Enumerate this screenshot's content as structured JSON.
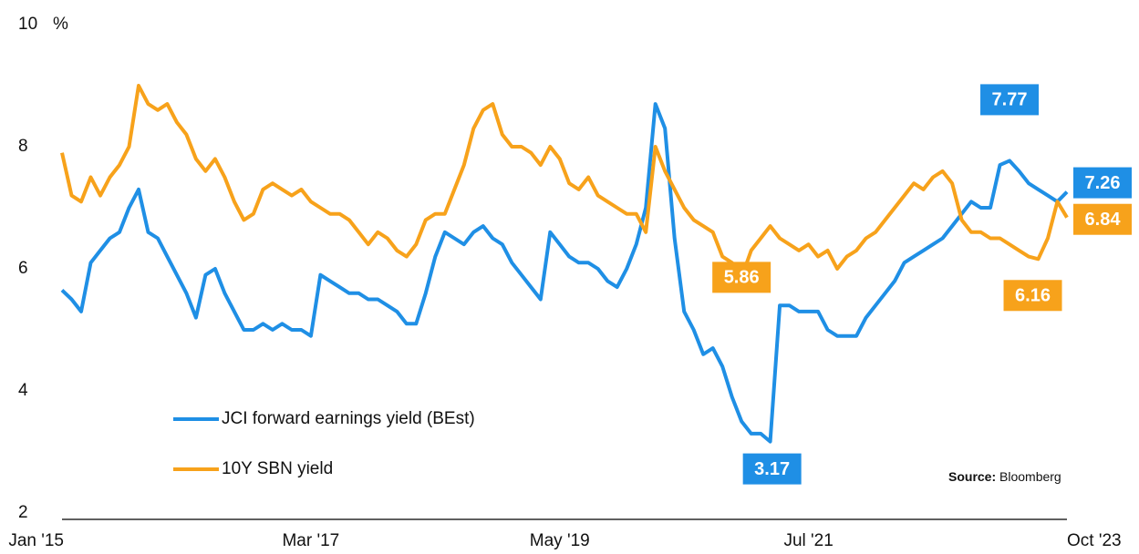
{
  "chart_data": {
    "type": "line",
    "y_unit": "%",
    "x": [
      "2015-01",
      "2015-02",
      "2015-03",
      "2015-04",
      "2015-05",
      "2015-06",
      "2015-07",
      "2015-08",
      "2015-09",
      "2015-10",
      "2015-11",
      "2015-12",
      "2016-01",
      "2016-02",
      "2016-03",
      "2016-04",
      "2016-05",
      "2016-06",
      "2016-07",
      "2016-08",
      "2016-09",
      "2016-10",
      "2016-11",
      "2016-12",
      "2017-01",
      "2017-02",
      "2017-03",
      "2017-04",
      "2017-05",
      "2017-06",
      "2017-07",
      "2017-08",
      "2017-09",
      "2017-10",
      "2017-11",
      "2017-12",
      "2018-01",
      "2018-02",
      "2018-03",
      "2018-04",
      "2018-05",
      "2018-06",
      "2018-07",
      "2018-08",
      "2018-09",
      "2018-10",
      "2018-11",
      "2018-12",
      "2019-01",
      "2019-02",
      "2019-03",
      "2019-04",
      "2019-05",
      "2019-06",
      "2019-07",
      "2019-08",
      "2019-09",
      "2019-10",
      "2019-11",
      "2019-12",
      "2020-01",
      "2020-02",
      "2020-03",
      "2020-04",
      "2020-05",
      "2020-06",
      "2020-07",
      "2020-08",
      "2020-09",
      "2020-10",
      "2020-11",
      "2020-12",
      "2021-01",
      "2021-02",
      "2021-03",
      "2021-04",
      "2021-05",
      "2021-06",
      "2021-07",
      "2021-08",
      "2021-09",
      "2021-10",
      "2021-11",
      "2021-12",
      "2022-01",
      "2022-02",
      "2022-03",
      "2022-04",
      "2022-05",
      "2022-06",
      "2022-07",
      "2022-08",
      "2022-09",
      "2022-10",
      "2022-11",
      "2022-12",
      "2023-01",
      "2023-02",
      "2023-03",
      "2023-04",
      "2023-05",
      "2023-06",
      "2023-07",
      "2023-08",
      "2023-09",
      "2023-10"
    ],
    "series": [
      {
        "name": "JCI forward earnings yield (BEst)",
        "color": "#1f8fe5",
        "values": [
          5.65,
          5.5,
          5.3,
          6.1,
          6.3,
          6.5,
          6.6,
          7.0,
          7.3,
          6.6,
          6.5,
          6.2,
          5.9,
          5.6,
          5.2,
          5.9,
          6.0,
          5.6,
          5.3,
          5.0,
          5.0,
          5.1,
          5.0,
          5.1,
          5.0,
          5.0,
          4.9,
          5.9,
          5.8,
          5.7,
          5.6,
          5.6,
          5.5,
          5.5,
          5.4,
          5.3,
          5.1,
          5.1,
          5.6,
          6.2,
          6.6,
          6.5,
          6.4,
          6.6,
          6.7,
          6.5,
          6.4,
          6.1,
          5.9,
          5.7,
          5.5,
          6.6,
          6.4,
          6.2,
          6.1,
          6.1,
          6.0,
          5.8,
          5.7,
          6.0,
          6.4,
          7.0,
          8.7,
          8.3,
          6.5,
          5.3,
          5.0,
          4.6,
          4.7,
          4.4,
          3.9,
          3.5,
          3.3,
          3.3,
          3.17,
          5.4,
          5.4,
          5.3,
          5.3,
          5.3,
          5.0,
          4.9,
          4.9,
          4.9,
          5.2,
          5.4,
          5.6,
          5.8,
          6.1,
          6.2,
          6.3,
          6.4,
          6.5,
          6.7,
          6.9,
          7.1,
          7.0,
          7.0,
          7.7,
          7.77,
          7.6,
          7.4,
          7.3,
          7.2,
          7.1,
          7.26
        ],
        "value_labels": [
          null,
          null,
          null,
          null,
          null,
          null,
          null,
          null,
          null,
          null,
          null,
          null,
          null,
          null,
          null,
          null,
          null,
          null,
          null,
          null,
          null,
          null,
          null,
          null,
          null,
          null,
          null,
          null,
          null,
          null,
          null,
          null,
          null,
          null,
          null,
          null,
          null,
          null,
          null,
          null,
          null,
          null,
          null,
          null,
          null,
          null,
          null,
          null,
          null,
          null,
          null,
          null,
          null,
          null,
          null,
          null,
          null,
          null,
          null,
          null,
          null,
          null,
          null,
          null,
          null,
          null,
          null,
          null,
          null,
          null,
          null,
          null,
          null,
          null,
          "3.17",
          null,
          null,
          null,
          null,
          null,
          null,
          null,
          null,
          null,
          null,
          null,
          null,
          null,
          null,
          null,
          null,
          null,
          null,
          null,
          null,
          null,
          null,
          null,
          null,
          "7.77",
          null,
          null,
          null,
          null,
          null,
          "7.26"
        ]
      },
      {
        "name": "10Y SBN yield",
        "color": "#f7a21b",
        "values": [
          7.9,
          7.2,
          7.1,
          7.5,
          7.2,
          7.5,
          7.7,
          8.0,
          9.0,
          8.7,
          8.6,
          8.7,
          8.4,
          8.2,
          7.8,
          7.6,
          7.8,
          7.5,
          7.1,
          6.8,
          6.9,
          7.3,
          7.4,
          7.3,
          7.2,
          7.3,
          7.1,
          7.0,
          6.9,
          6.9,
          6.8,
          6.6,
          6.4,
          6.6,
          6.5,
          6.3,
          6.2,
          6.4,
          6.8,
          6.9,
          6.9,
          7.3,
          7.7,
          8.3,
          8.6,
          8.7,
          8.2,
          8.0,
          8.0,
          7.9,
          7.7,
          8.0,
          7.8,
          7.4,
          7.3,
          7.5,
          7.2,
          7.1,
          7.0,
          6.9,
          6.9,
          6.6,
          8.0,
          7.6,
          7.3,
          7.0,
          6.8,
          6.7,
          6.6,
          6.2,
          6.1,
          5.86,
          6.3,
          6.5,
          6.7,
          6.5,
          6.4,
          6.3,
          6.4,
          6.2,
          6.3,
          6.0,
          6.2,
          6.3,
          6.5,
          6.6,
          6.8,
          7.0,
          7.2,
          7.4,
          7.3,
          7.5,
          7.6,
          7.4,
          6.8,
          6.6,
          6.6,
          6.5,
          6.5,
          6.4,
          6.3,
          6.2,
          6.16,
          6.5,
          7.1,
          6.84
        ],
        "value_labels": [
          null,
          null,
          null,
          null,
          null,
          null,
          null,
          null,
          null,
          null,
          null,
          null,
          null,
          null,
          null,
          null,
          null,
          null,
          null,
          null,
          null,
          null,
          null,
          null,
          null,
          null,
          null,
          null,
          null,
          null,
          null,
          null,
          null,
          null,
          null,
          null,
          null,
          null,
          null,
          null,
          null,
          null,
          null,
          null,
          null,
          null,
          null,
          null,
          null,
          null,
          null,
          null,
          null,
          null,
          null,
          null,
          null,
          null,
          null,
          null,
          null,
          null,
          null,
          null,
          null,
          null,
          null,
          null,
          null,
          null,
          null,
          "5.86",
          null,
          null,
          null,
          null,
          null,
          null,
          null,
          null,
          null,
          null,
          null,
          null,
          null,
          null,
          null,
          null,
          null,
          null,
          null,
          null,
          null,
          null,
          null,
          null,
          null,
          null,
          null,
          null,
          null,
          null,
          "6.16",
          null,
          null,
          "6.84"
        ]
      }
    ],
    "ylim": [
      2,
      10
    ],
    "yticks": [
      2,
      4,
      6,
      8,
      10
    ],
    "xlim": [
      "2015-01",
      "2023-10"
    ],
    "xticks": [
      {
        "value": "2015-01",
        "label": "Jan '15"
      },
      {
        "value": "2017-03",
        "label": "Mar '17"
      },
      {
        "value": "2019-05",
        "label": "May '19"
      },
      {
        "value": "2021-07",
        "label": "Jul '21"
      },
      {
        "value": "2023-10",
        "label": "Oct '23"
      }
    ],
    "source_label": "Source:",
    "source": "Bloomberg"
  }
}
